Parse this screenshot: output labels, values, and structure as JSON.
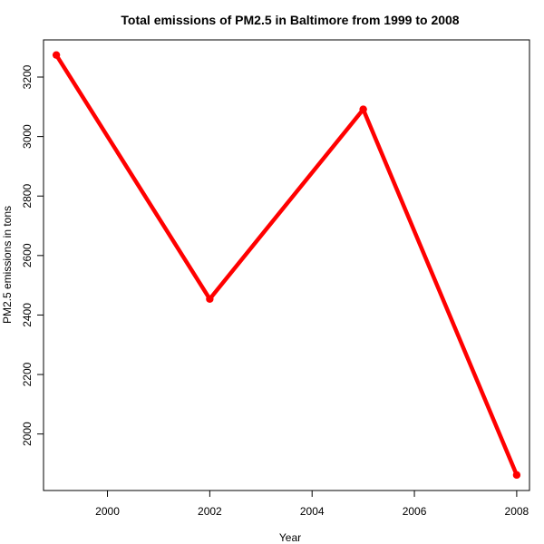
{
  "chart_data": {
    "type": "line",
    "title": "Total emissions of PM2.5 in Baltimore from 1999 to 2008",
    "xlabel": "Year",
    "ylabel": "PM2.5 emissions in tons",
    "x": [
      1999,
      2002,
      2005,
      2008
    ],
    "series": [
      {
        "values": [
          3274.2,
          2453.9,
          3091.4,
          1862.3
        ]
      }
    ],
    "xticks": [
      2000,
      2002,
      2004,
      2006,
      2008
    ],
    "yticks": [
      2000,
      2200,
      2400,
      2600,
      2800,
      3000,
      3200
    ],
    "xlim": [
      1998.75,
      2008.25
    ],
    "ylim": [
      1810,
      3325
    ],
    "color": "#ff0000",
    "grid": false,
    "legend": "none"
  }
}
